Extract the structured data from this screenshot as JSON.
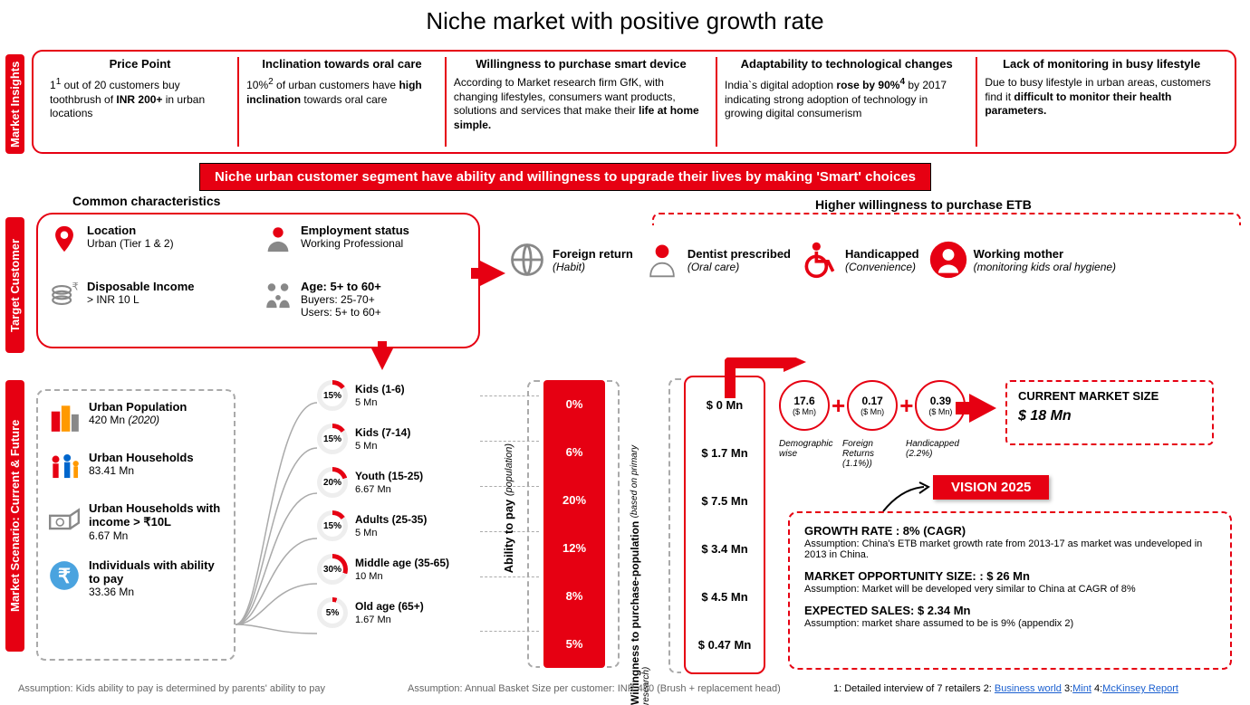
{
  "title": "Niche market with positive growth rate",
  "tabs": {
    "insights": "Market Insights",
    "target": "Target Customer",
    "scenario": "Market Scenario: Current & Future"
  },
  "insights": [
    {
      "h": "Price Point",
      "html": "1<sup>1</sup> out of 20 customers buy toothbrush of <b>INR 200+</b> in urban locations"
    },
    {
      "h": "Inclination towards oral care",
      "html": "10%<sup>2</sup> of urban customers have <b>high inclination</b> towards oral care"
    },
    {
      "h": "Willingness to purchase smart device",
      "html": "According to Market research firm GfK, with changing lifestyles, consumers want products, solutions and services that make their <b>life at home simple.</b>"
    },
    {
      "h": "Adaptability to technological changes",
      "html": "India`s digital adoption <b>rose by 90%<sup>4</sup></b> by 2017 indicating strong adoption of technology in growing digital consumerism"
    },
    {
      "h": "Lack of monitoring in busy lifestyle",
      "html": "Due to busy lifestyle in urban areas, customers find it <b>difficult to monitor their health parameters.</b>"
    }
  ],
  "banner": "Niche urban customer segment have ability and willingness to upgrade their lives by making 'Smart' choices",
  "char_title": "Common characteristics",
  "characteristics": [
    {
      "t": "Location",
      "s": "Urban (Tier 1 & 2)",
      "icon": "pin"
    },
    {
      "t": "Employment status",
      "s": "Working Professional",
      "icon": "worker"
    },
    {
      "t": "Disposable Income",
      "s": "> INR 10 L",
      "icon": "coins"
    },
    {
      "t": "Age: 5+ to 60+",
      "s": "Buyers: 25-70+\nUsers: 5+ to 60+",
      "icon": "family"
    }
  ],
  "hw_title": "Higher willingness to purchase ETB",
  "hw_items": [
    {
      "t": "Foreign return",
      "s": "(Habit)",
      "icon": "globe"
    },
    {
      "t": "Dentist prescribed",
      "s": "(Oral care)",
      "icon": "dentist"
    },
    {
      "t": "Handicapped",
      "s": "(Convenience)",
      "icon": "wheelchair"
    },
    {
      "t": "Working mother",
      "s": "(monitoring kids oral hygiene)",
      "icon": "mother"
    }
  ],
  "stats": [
    {
      "t": "Urban Population",
      "s": "420 Mn <i>(2020)</i>",
      "icon": "buildings"
    },
    {
      "t": "Urban Households",
      "s": "83.41 Mn",
      "icon": "family2"
    },
    {
      "t": "Urban Households with income > ₹10L",
      "s": "6.67 Mn",
      "icon": "money"
    },
    {
      "t": "Individuals with ability to pay",
      "s": "33.36 Mn",
      "icon": "rupee"
    }
  ],
  "segments": [
    {
      "pct": 15,
      "t": "Kids (1-6)",
      "s": "5 Mn"
    },
    {
      "pct": 15,
      "t": "Kids (7-14)",
      "s": "5 Mn"
    },
    {
      "pct": 20,
      "t": "Youth (15-25)",
      "s": "6.67 Mn"
    },
    {
      "pct": 15,
      "t": "Adults (25-35)",
      "s": "5 Mn"
    },
    {
      "pct": 30,
      "t": "Middle age (35-65)",
      "s": "10 Mn"
    },
    {
      "pct": 5,
      "t": "Old age (65+)",
      "s": "1.67 Mn"
    }
  ],
  "pay_label": "Ability to pay",
  "pay_sub": "(population)",
  "redbar_vals": [
    "0%",
    "6%",
    "20%",
    "12%",
    "8%",
    "5%"
  ],
  "will_label": "Willingness to purchase-population",
  "will_sub": "(based on primary research)",
  "dollar_vals": [
    "$ 0 Mn",
    "$ 1.7 Mn",
    "$ 7.5 Mn",
    "$ 3.4 Mn",
    "$ 4.5 Mn",
    "$ 0.47 Mn"
  ],
  "bubbles": [
    {
      "v": "17.6",
      "u": "($ Mn)",
      "sub": "Demographic wise"
    },
    {
      "v": "0.17",
      "u": "($ Mn)",
      "sub": "Foreign Returns (1.1%))"
    },
    {
      "v": "0.39",
      "u": "($ Mn)",
      "sub": "Handicapped (2.2%)"
    }
  ],
  "market_size": {
    "t": "CURRENT MARKET SIZE",
    "v": "$ 18  Mn"
  },
  "vision_badge": "VISION 2025",
  "vision_rows": [
    {
      "t": "GROWTH RATE : 8% (CAGR)",
      "s": "Assumption: China's ETB market growth rate from 2013-17 as market was undeveloped in 2013 in China."
    },
    {
      "t": "MARKET OPPORTUNITY SIZE: : $ 26 Mn",
      "s": "Assumption: Market will be developed very similar to China at CAGR of 8%"
    },
    {
      "t": "EXPECTED SALES: $ 2.34 Mn",
      "s": "Assumption: market share assumed to be is 9% (appendix 2)"
    }
  ],
  "assum1": "Assumption: Kids ability to pay is determined by parents' ability to pay",
  "assum2": "Assumption: Annual Basket Size per customer: INR 450 (Brush  + replacement head)",
  "sources_html": "1: Detailed interview of 7 retailers 2: <a href='#'>Business world</a> 3:<a href='#'>Mint</a> 4:<a href='#'>McKinsey Report</a>",
  "colors": {
    "brand": "#e60012"
  }
}
